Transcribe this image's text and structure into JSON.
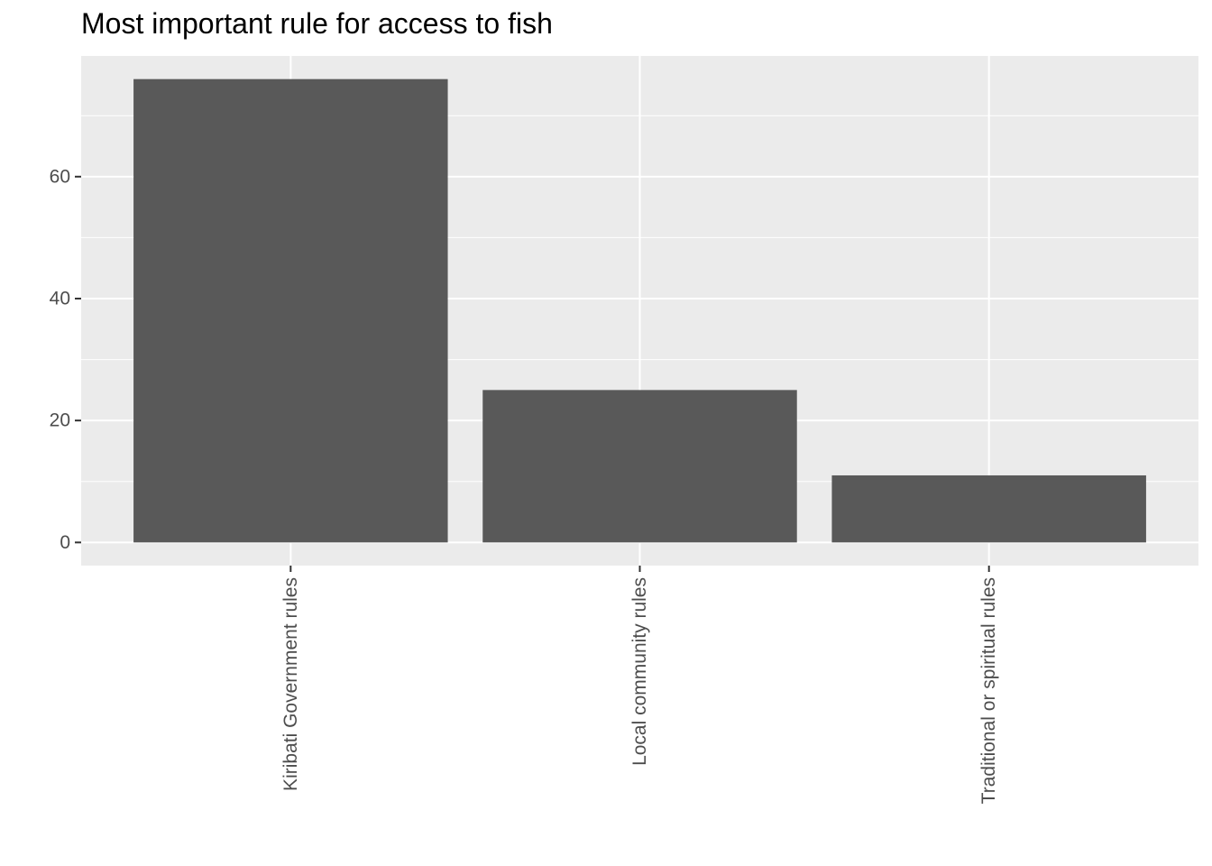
{
  "chart_data": {
    "type": "bar",
    "title": "Most important rule for access to fish",
    "xlabel": "",
    "ylabel": "",
    "categories": [
      "Kiribati Government rules",
      "Local community rules",
      "Traditional or spiritual rules"
    ],
    "values": [
      76,
      25,
      11
    ],
    "ylim": [
      -3.8,
      79.8
    ],
    "yticks": [
      0,
      20,
      40,
      60
    ],
    "x_tick_label_rotation": "vertical",
    "grid": true,
    "legend": "none",
    "colors": {
      "bar": "#595959",
      "panel": "#ebebeb",
      "grid": "#ffffff",
      "tick": "#333333",
      "tick_label": "#4d4d4d"
    }
  }
}
